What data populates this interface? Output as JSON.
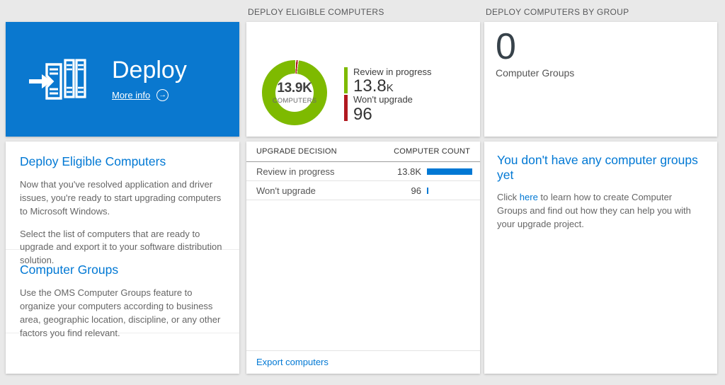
{
  "colors": {
    "page_bg": "#e9e9e9",
    "tile_blue": "#0a78cf",
    "accent": "#0078d4",
    "green": "#7eba00",
    "red": "#b11920",
    "bar_blue": "#0078d4",
    "header_text": "#58595b",
    "body_text": "#666666",
    "dark_text": "#333333",
    "divider": "#ededed"
  },
  "columns": {
    "left": {
      "tile": {
        "title": "Deploy",
        "more_info": "More info"
      },
      "sections": [
        {
          "heading": "Deploy Eligible Computers",
          "paragraphs": [
            "Now that you've resolved application and driver issues, you're ready to start upgrading computers to Microsoft Windows.",
            "Select the list of computers that are ready to upgrade and export it to your software distribution solution."
          ]
        },
        {
          "heading": "Computer Groups",
          "paragraphs": [
            "Use the OMS Computer Groups feature to organize your computers according to business area, geographic location, discipline, or any other factors you find relevant."
          ]
        }
      ]
    },
    "middle": {
      "header": "DEPLOY ELIGIBLE COMPUTERS",
      "donut": {
        "center_value": "13.9K",
        "center_label": "COMPUTERS",
        "legend": [
          {
            "label": "Review in progress",
            "value": "13.8",
            "suffix": "K"
          },
          {
            "label": "Won't upgrade",
            "value": "96",
            "suffix": ""
          }
        ]
      },
      "table": {
        "headers": [
          "UPGRADE DECISION",
          "COMPUTER COUNT"
        ],
        "rows": [
          {
            "decision": "Review in progress",
            "count": "13.8K",
            "bar_pct": 100
          },
          {
            "decision": "Won't upgrade",
            "count": "96",
            "bar_pct": 3
          }
        ]
      },
      "export_link": "Export computers"
    },
    "right": {
      "header": "DEPLOY COMPUTERS BY GROUP",
      "count_value": "0",
      "count_label": "Computer Groups",
      "empty_heading": "You don't have any computer groups yet",
      "empty_text_before": "Click ",
      "empty_link": "here",
      "empty_text_after": " to learn how to create Computer Groups and find out how they can help you with your upgrade project."
    }
  },
  "chart_data": [
    {
      "type": "pie",
      "title": "DEPLOY ELIGIBLE COMPUTERS",
      "center_value": "13.9K",
      "center_label": "COMPUTERS",
      "slices": [
        {
          "label": "Review in progress",
          "value": 13800,
          "display": "13.8K",
          "color": "#7eba00"
        },
        {
          "label": "Won't upgrade",
          "value": 96,
          "display": "96",
          "color": "#b11920"
        }
      ],
      "legend_position": "right"
    },
    {
      "type": "table",
      "columns": [
        "UPGRADE DECISION",
        "COMPUTER COUNT"
      ],
      "rows": [
        [
          "Review in progress",
          "13.8K"
        ],
        [
          "Won't upgrade",
          "96"
        ]
      ],
      "bar_values": [
        13800,
        96
      ],
      "bar_color": "#0078d4"
    }
  ]
}
